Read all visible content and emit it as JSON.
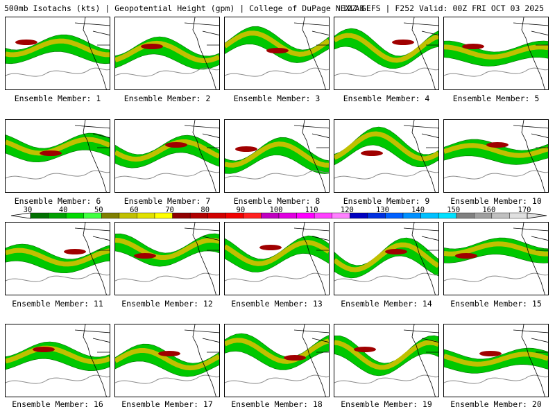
{
  "header": {
    "title": "500mb Isotachs (kts) | Geopotential Height (gpm) | College of DuPage NEXLAB",
    "run": "12Z GEFS | F252 Valid: 00Z FRI OCT 03 2025"
  },
  "members": [
    "Ensemble Member: 1",
    "Ensemble Member: 2",
    "Ensemble Member: 3",
    "Ensemble Member: 4",
    "Ensemble Member: 5",
    "Ensemble Member: 6",
    "Ensemble Member: 7",
    "Ensemble Member: 8",
    "Ensemble Member: 9",
    "Ensemble Member: 10",
    "Ensemble Member: 11",
    "Ensemble Member: 12",
    "Ensemble Member: 13",
    "Ensemble Member: 14",
    "Ensemble Member: 15",
    "Ensemble Member: 16",
    "Ensemble Member: 17",
    "Ensemble Member: 18",
    "Ensemble Member: 19",
    "Ensemble Member: 20"
  ],
  "colorbar": {
    "labels": [
      "30",
      "40",
      "50",
      "60",
      "70",
      "80",
      "90",
      "100",
      "110",
      "120",
      "130",
      "140",
      "150",
      "160",
      "170"
    ],
    "colors": [
      "#007000",
      "#00a000",
      "#00d800",
      "#40ff40",
      "#808000",
      "#c0c000",
      "#e0e000",
      "#ffff00",
      "#900000",
      "#b00000",
      "#d00000",
      "#f00000",
      "#ff2020",
      "#c000c0",
      "#e000e0",
      "#ff00ff",
      "#ff40ff",
      "#ff80ff",
      "#0000c0",
      "#0030e0",
      "#0060ff",
      "#0090ff",
      "#00c0ff",
      "#00e0ff",
      "#808080",
      "#a0a0a0",
      "#c0c0c0",
      "#e0e0e0"
    ]
  }
}
